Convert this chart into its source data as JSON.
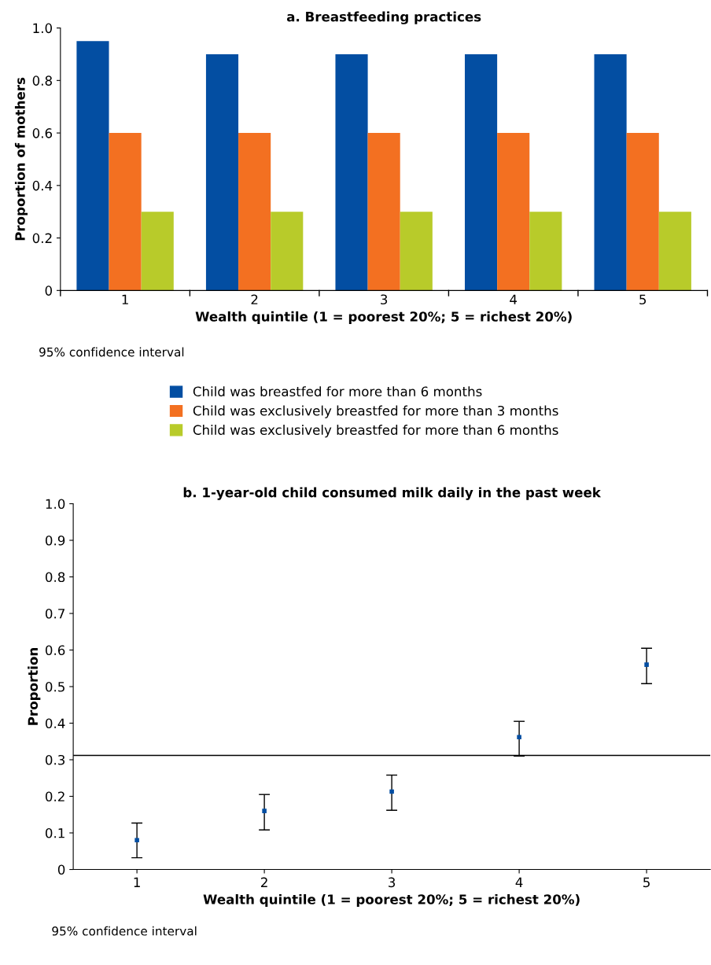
{
  "chart_data": [
    {
      "type": "bar",
      "title": "a. Breastfeeding practices",
      "xlabel": "Wealth quintile (1 = poorest 20%; 5 = richest 20%)",
      "ylabel": "Proportion of mothers",
      "categories": [
        "1",
        "2",
        "3",
        "4",
        "5"
      ],
      "series": [
        {
          "name": "Child was breastfed for more than 6 months",
          "color": "#034ea2",
          "values": [
            0.95,
            0.9,
            0.9,
            0.9,
            0.9
          ]
        },
        {
          "name": "Child was exclusively breastfed for more than 3 months",
          "color": "#f37021",
          "values": [
            0.6,
            0.6,
            0.6,
            0.6,
            0.6
          ]
        },
        {
          "name": "Child was exclusively breastfed for more than 6 months",
          "color": "#b8cb2a",
          "values": [
            0.3,
            0.3,
            0.3,
            0.3,
            0.3
          ]
        }
      ],
      "ylim": [
        0,
        1.0
      ],
      "yticks": [
        0,
        0.2,
        0.4,
        0.6,
        0.8,
        {
          "value": 1.0,
          "label": "1.0"
        }
      ],
      "annotations": [
        "95% confidence interval"
      ],
      "legend": "bottom",
      "grid": false
    },
    {
      "type": "scatter",
      "title": "b. 1-year-old child consumed milk daily in the past week",
      "xlabel": "Wealth quintile (1 = poorest 20%; 5 = richest 20%)",
      "ylabel": "Proportion",
      "categories": [
        "1",
        "2",
        "3",
        "4",
        "5"
      ],
      "series": [
        {
          "color": "#034ea2",
          "values": [
            0.08,
            0.16,
            0.213,
            0.362,
            0.56
          ],
          "errors": [
            [
              0.032,
              0.127
            ],
            [
              0.108,
              0.205
            ],
            [
              0.162,
              0.258
            ],
            [
              0.31,
              0.405
            ],
            [
              0.508,
              0.605
            ]
          ]
        }
      ],
      "ylim": [
        0,
        1.0
      ],
      "yticks": [
        0,
        0.1,
        0.2,
        0.3,
        0.4,
        0.5,
        0.6,
        0.7,
        0.8,
        0.9,
        {
          "value": 1.0,
          "label": "1.0"
        }
      ],
      "ref_lines": [
        {
          "axis": "y",
          "value": 0.312,
          "color": "#000000"
        }
      ],
      "annotations": [
        "95% confidence interval"
      ],
      "marker": "square",
      "grid": false
    }
  ]
}
